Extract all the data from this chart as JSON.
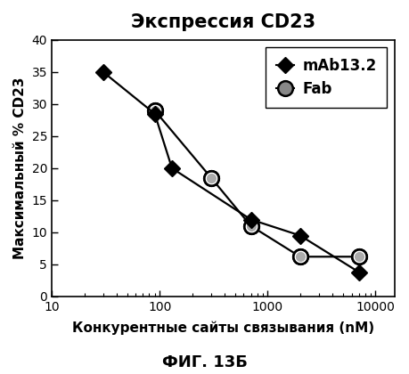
{
  "title": "Экспрессия CD23",
  "xlabel": "Конкурентные сайты связывания (nM)",
  "ylabel": "Максимальный % CD23",
  "subtitle": "ФИГ. 13Б",
  "xlim": [
    10,
    15000
  ],
  "ylim": [
    0,
    40
  ],
  "yticks": [
    0,
    5,
    10,
    15,
    20,
    25,
    30,
    35,
    40
  ],
  "xticks": [
    10,
    100,
    1000,
    10000
  ],
  "xtick_labels": [
    "10",
    "100",
    "1000",
    "10000"
  ],
  "mAb13_2_x": [
    30,
    90,
    130,
    700,
    2000,
    7000
  ],
  "mAb13_2_y": [
    35,
    28.5,
    20.0,
    12.0,
    9.5,
    3.8
  ],
  "fab_x": [
    90,
    300,
    700,
    2000,
    7000
  ],
  "fab_y": [
    29.0,
    18.5,
    11.0,
    6.2,
    6.2
  ],
  "legend_labels": [
    "mAb13.2",
    "Fab"
  ],
  "mab_color": "#000000",
  "fab_color": "#000000",
  "title_fontsize": 15,
  "label_fontsize": 11,
  "tick_fontsize": 10,
  "legend_fontsize": 12
}
